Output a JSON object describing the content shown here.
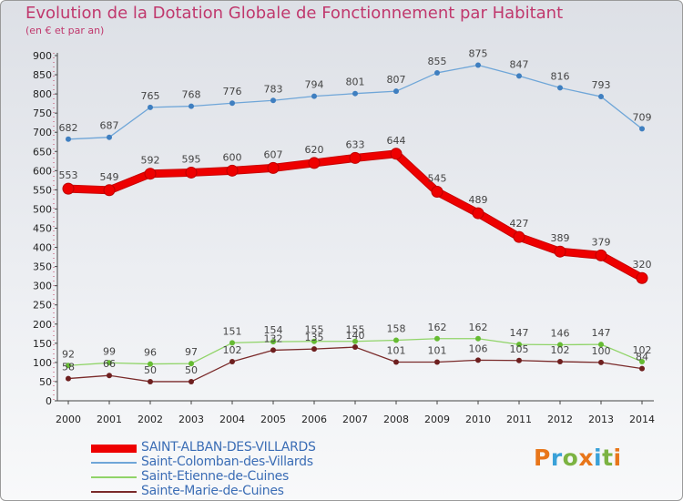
{
  "title": "Evolution de la Dotation Globale de Fonctionnement par Habitant",
  "subtitle": "(en € et par an)",
  "brand": {
    "letters": [
      "P",
      "r",
      "o",
      "x",
      "i",
      "t",
      "i"
    ],
    "colors": [
      "#e8761a",
      "#3aa1d8",
      "#7cb342",
      "#e8761a",
      "#3aa1d8",
      "#7cb342",
      "#e8761a"
    ]
  },
  "chart_data": {
    "type": "line",
    "x": [
      "2000",
      "2001",
      "2002",
      "2003",
      "2004",
      "2005",
      "2006",
      "2007",
      "2008",
      "2009",
      "2010",
      "2011",
      "2012",
      "2013",
      "2014"
    ],
    "ylim": [
      0,
      900
    ],
    "yticks": [
      0,
      50,
      100,
      150,
      200,
      250,
      300,
      350,
      400,
      450,
      500,
      550,
      600,
      650,
      700,
      750,
      800,
      850,
      900
    ],
    "grid": false,
    "legend_position": "bottom-left",
    "series": [
      {
        "name": "SAINT-ALBAN-DES-VILLARDS",
        "color": "#ee0000",
        "marker": "#ee0000",
        "bold": true,
        "values": [
          553,
          549,
          592,
          595,
          600,
          607,
          620,
          633,
          644,
          545,
          489,
          427,
          389,
          379,
          320
        ]
      },
      {
        "name": "Saint-Colomban-des-Villards",
        "color": "#6fa6d8",
        "marker": "#3f7fc0",
        "bold": false,
        "values": [
          682,
          687,
          765,
          768,
          776,
          783,
          794,
          801,
          807,
          855,
          875,
          847,
          816,
          793,
          709
        ]
      },
      {
        "name": "Saint-Etienne-de-Cuines",
        "color": "#90d468",
        "marker": "#66bb33",
        "bold": false,
        "values": [
          92,
          99,
          96,
          97,
          151,
          154,
          155,
          155,
          158,
          162,
          162,
          147,
          146,
          147,
          102
        ]
      },
      {
        "name": "Sainte-Marie-de-Cuines",
        "color": "#7a2a2a",
        "marker": "#6e1f1f",
        "bold": false,
        "values": [
          58,
          66,
          50,
          50,
          102,
          132,
          135,
          140,
          101,
          101,
          106,
          105,
          102,
          100,
          84
        ]
      }
    ]
  }
}
